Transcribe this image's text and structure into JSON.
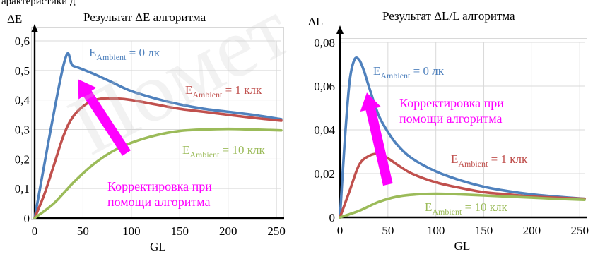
{
  "colors": {
    "ambient0": "#4f81bd",
    "ambient1": "#c0504d",
    "ambient10": "#9bbb59",
    "arrow": "#ff00ff",
    "grid": "#d9d9d9"
  },
  "top_cut_text": "арактеристики д",
  "watermark_text": "Пoмет",
  "chart_data": [
    {
      "type": "line",
      "title": "Результат ΔE алгоритма",
      "ylabel": "ΔE",
      "xlabel": "GL",
      "xlim": [
        0,
        255
      ],
      "ylim": [
        0,
        0.6
      ],
      "xticks": [
        0,
        50,
        100,
        150,
        200,
        250
      ],
      "yticks": [
        "0",
        "0,1",
        "0,2",
        "0,3",
        "0,4",
        "0,5",
        "0,6"
      ],
      "yticks_values": [
        0,
        0.1,
        0.2,
        0.3,
        0.4,
        0.5,
        0.6
      ],
      "grid": true,
      "series": [
        {
          "key": "ambient0",
          "label_main": "E",
          "label_sub": "Ambient",
          "label_rest": " = 0 лк",
          "x": [
            0,
            30,
            40,
            60,
            80,
            100,
            125,
            150,
            175,
            200,
            225,
            255
          ],
          "values": [
            0,
            0.52,
            0.515,
            0.49,
            0.46,
            0.43,
            0.405,
            0.385,
            0.37,
            0.36,
            0.35,
            0.335
          ]
        },
        {
          "key": "ambient1",
          "label_main": "E",
          "label_sub": "Ambient",
          "label_rest": " = 1 клк",
          "x": [
            0,
            10,
            20,
            30,
            40,
            55,
            70,
            85,
            100,
            125,
            150,
            175,
            200,
            225,
            255
          ],
          "values": [
            0,
            0.08,
            0.18,
            0.28,
            0.345,
            0.39,
            0.405,
            0.405,
            0.4,
            0.385,
            0.37,
            0.36,
            0.35,
            0.34,
            0.33
          ]
        },
        {
          "key": "ambient10",
          "label_main": "E",
          "label_sub": "Ambient",
          "label_rest": " = 10 клк",
          "x": [
            0,
            20,
            40,
            60,
            80,
            100,
            125,
            150,
            175,
            200,
            225,
            255
          ],
          "values": [
            0,
            0.05,
            0.12,
            0.18,
            0.225,
            0.255,
            0.28,
            0.295,
            0.3,
            0.302,
            0.3,
            0.297
          ]
        }
      ],
      "annotation": {
        "line1": "Корректировка при",
        "line2": "помощи алгоритма",
        "arrow_from": [
          95,
          0.22
        ],
        "arrow_to": [
          45,
          0.47
        ]
      }
    },
    {
      "type": "line",
      "title": "Результат ΔL/L алгоритма",
      "ylabel": "ΔL",
      "xlabel": "GL",
      "xlim": [
        0,
        255
      ],
      "ylim": [
        0,
        0.08
      ],
      "xticks": [
        0,
        50,
        100,
        150,
        200,
        250
      ],
      "yticks": [
        "0",
        "0,02",
        "0,04",
        "0,06",
        "0,08"
      ],
      "yticks_values": [
        0,
        0.02,
        0.04,
        0.06,
        0.08
      ],
      "grid": true,
      "series": [
        {
          "key": "ambient0",
          "label_main": "E",
          "label_sub": "Ambient",
          "label_rest": " = 0 лк",
          "x": [
            0,
            5,
            10,
            15,
            20,
            25,
            30,
            40,
            50,
            60,
            75,
            100,
            125,
            150,
            175,
            200,
            225,
            255
          ],
          "values": [
            0,
            0.035,
            0.062,
            0.072,
            0.072,
            0.067,
            0.06,
            0.047,
            0.039,
            0.033,
            0.027,
            0.021,
            0.017,
            0.014,
            0.012,
            0.0105,
            0.0095,
            0.0085
          ]
        },
        {
          "key": "ambient1",
          "label_main": "E",
          "label_sub": "Ambient",
          "label_rest": " = 1 клк",
          "x": [
            0,
            10,
            20,
            30,
            40,
            50,
            60,
            75,
            100,
            125,
            150,
            175,
            200,
            225,
            255
          ],
          "values": [
            0,
            0.012,
            0.024,
            0.028,
            0.029,
            0.027,
            0.024,
            0.02,
            0.016,
            0.0135,
            0.0115,
            0.0105,
            0.0095,
            0.009,
            0.0085
          ]
        },
        {
          "key": "ambient10",
          "label_main": "E",
          "label_sub": "Ambient",
          "label_rest": " = 10 клк",
          "x": [
            0,
            20,
            40,
            60,
            80,
            100,
            125,
            150,
            175,
            200,
            225,
            255
          ],
          "values": [
            0,
            0.003,
            0.007,
            0.0095,
            0.0105,
            0.0108,
            0.0105,
            0.01,
            0.0095,
            0.009,
            0.0085,
            0.008
          ]
        }
      ],
      "annotation": {
        "line1": "Корректировка при",
        "line2": "помощи алгоритма",
        "arrow_from": [
          50,
          0.015
        ],
        "arrow_to": [
          28,
          0.057
        ]
      }
    }
  ]
}
